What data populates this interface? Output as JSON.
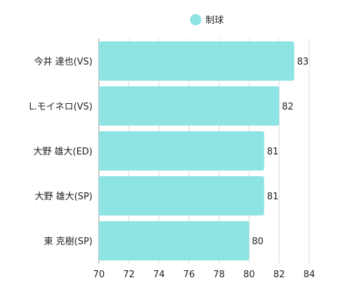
{
  "chart_data": {
    "type": "bar",
    "orientation": "horizontal",
    "categories": [
      "今井 達也(VS)",
      "L.モイネロ(VS)",
      "大野 雄大(ED)",
      "大野 雄大(SP)",
      "東 克樹(SP)"
    ],
    "series": [
      {
        "name": "制球",
        "values": [
          83,
          82,
          81,
          81,
          80
        ],
        "color": "#8ee3e3"
      }
    ],
    "xlim": [
      70,
      84
    ],
    "xticks": [
      70,
      72,
      74,
      76,
      78,
      80,
      82,
      84
    ],
    "grid": true,
    "legend_position": "top-center",
    "title": "",
    "xlabel": "",
    "ylabel": ""
  }
}
